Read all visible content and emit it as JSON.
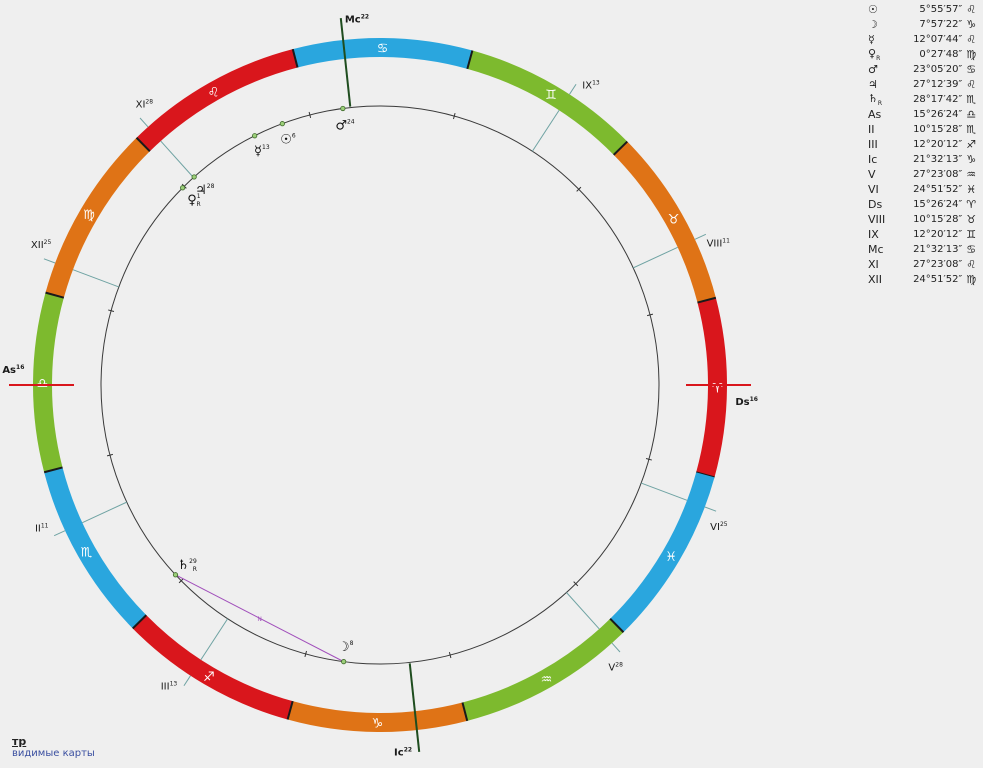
{
  "signs": [
    {
      "glyph": "♈",
      "color": "#d9161c"
    },
    {
      "glyph": "♉",
      "color": "#df7316"
    },
    {
      "glyph": "♊",
      "color": "#7dba2e"
    },
    {
      "glyph": "♋",
      "color": "#2aa6de"
    },
    {
      "glyph": "♌",
      "color": "#d9161c"
    },
    {
      "glyph": "♍",
      "color": "#df7316"
    },
    {
      "glyph": "♎",
      "color": "#7dba2e"
    },
    {
      "glyph": "♏",
      "color": "#2aa6de"
    },
    {
      "glyph": "♐",
      "color": "#d9161c"
    },
    {
      "glyph": "♑",
      "color": "#df7316"
    },
    {
      "glyph": "♒",
      "color": "#7dba2e"
    },
    {
      "glyph": "♓",
      "color": "#2aa6de"
    }
  ],
  "asc_longitude": 195.44,
  "cusps": [
    {
      "label": "As",
      "deg": "16",
      "lon": 195.44,
      "axis": true
    },
    {
      "label": "II",
      "deg": "11",
      "lon": 220.26
    },
    {
      "label": "III",
      "deg": "13",
      "lon": 252.34
    },
    {
      "label": "Ic",
      "deg": "22",
      "lon": 291.54,
      "axis": true
    },
    {
      "label": "V",
      "deg": "28",
      "lon": 327.39
    },
    {
      "label": "VI",
      "deg": "25",
      "lon": 354.86
    },
    {
      "label": "Ds",
      "deg": "16",
      "lon": 15.44,
      "axis": true
    },
    {
      "label": "VIII",
      "deg": "11",
      "lon": 40.26
    },
    {
      "label": "IX",
      "deg": "13",
      "lon": 72.34
    },
    {
      "label": "Mc",
      "deg": "22",
      "lon": 111.54,
      "axis": true
    },
    {
      "label": "XI",
      "deg": "28",
      "lon": 147.39
    },
    {
      "label": "XII",
      "deg": "25",
      "lon": 174.86
    }
  ],
  "planets": [
    {
      "glyph": "☉",
      "deg": "6",
      "lon": 125.93,
      "retro": false
    },
    {
      "glyph": "☽",
      "deg": "8",
      "lon": 277.96,
      "retro": false
    },
    {
      "glyph": "☿",
      "deg": "13",
      "lon": 132.13,
      "retro": false
    },
    {
      "glyph": "♀",
      "deg": "1",
      "lon": 150.46,
      "retro": true
    },
    {
      "glyph": "♂",
      "deg": "24",
      "lon": 113.09,
      "retro": false
    },
    {
      "glyph": "♃",
      "deg": "28",
      "lon": 147.21,
      "retro": false
    },
    {
      "glyph": "♄",
      "deg": "29",
      "lon": 238.3,
      "retro": true
    }
  ],
  "aspects": [
    {
      "from_lon": 277.96,
      "to_lon": 238.3,
      "label": "N",
      "color": "#a14fbb"
    }
  ],
  "table": [
    {
      "glyph": "☉",
      "retro": "",
      "deg": "5°55′57″",
      "sign": "♌"
    },
    {
      "glyph": "☽",
      "retro": "",
      "deg": "7°57′22″",
      "sign": "♑"
    },
    {
      "glyph": "☿",
      "retro": "",
      "deg": "12°07′44″",
      "sign": "♌"
    },
    {
      "glyph": "♀",
      "retro": "R",
      "deg": "0°27′48″",
      "sign": "♍"
    },
    {
      "glyph": "♂",
      "retro": "",
      "deg": "23°05′20″",
      "sign": "♋"
    },
    {
      "glyph": "♃",
      "retro": "",
      "deg": "27°12′39″",
      "sign": "♌"
    },
    {
      "glyph": "♄",
      "retro": "R",
      "deg": "28°17′42″",
      "sign": "♏"
    },
    {
      "glyph": "As",
      "retro": "",
      "deg": "15°26′24″",
      "sign": "♎"
    },
    {
      "glyph": "II",
      "retro": "",
      "deg": "10°15′28″",
      "sign": "♏"
    },
    {
      "glyph": "III",
      "retro": "",
      "deg": "12°20′12″",
      "sign": "♐"
    },
    {
      "glyph": "Ic",
      "retro": "",
      "deg": "21°32′13″",
      "sign": "♑"
    },
    {
      "glyph": "V",
      "retro": "",
      "deg": "27°23′08″",
      "sign": "♒"
    },
    {
      "glyph": "VI",
      "retro": "",
      "deg": "24°51′52″",
      "sign": "♓"
    },
    {
      "glyph": "Ds",
      "retro": "",
      "deg": "15°26′24″",
      "sign": "♈"
    },
    {
      "glyph": "VIII",
      "retro": "",
      "deg": "10°15′28″",
      "sign": "♉"
    },
    {
      "glyph": "IX",
      "retro": "",
      "deg": "12°20′12″",
      "sign": "♊"
    },
    {
      "glyph": "Mc",
      "retro": "",
      "deg": "21°32′13″",
      "sign": "♋"
    },
    {
      "glyph": "XI",
      "retro": "",
      "deg": "27°23′08″",
      "sign": "♌"
    },
    {
      "glyph": "XII",
      "retro": "",
      "deg": "24°51′52″",
      "sign": "♍"
    }
  ],
  "footer": {
    "title": "тр",
    "subtitle": "видимые карты"
  }
}
